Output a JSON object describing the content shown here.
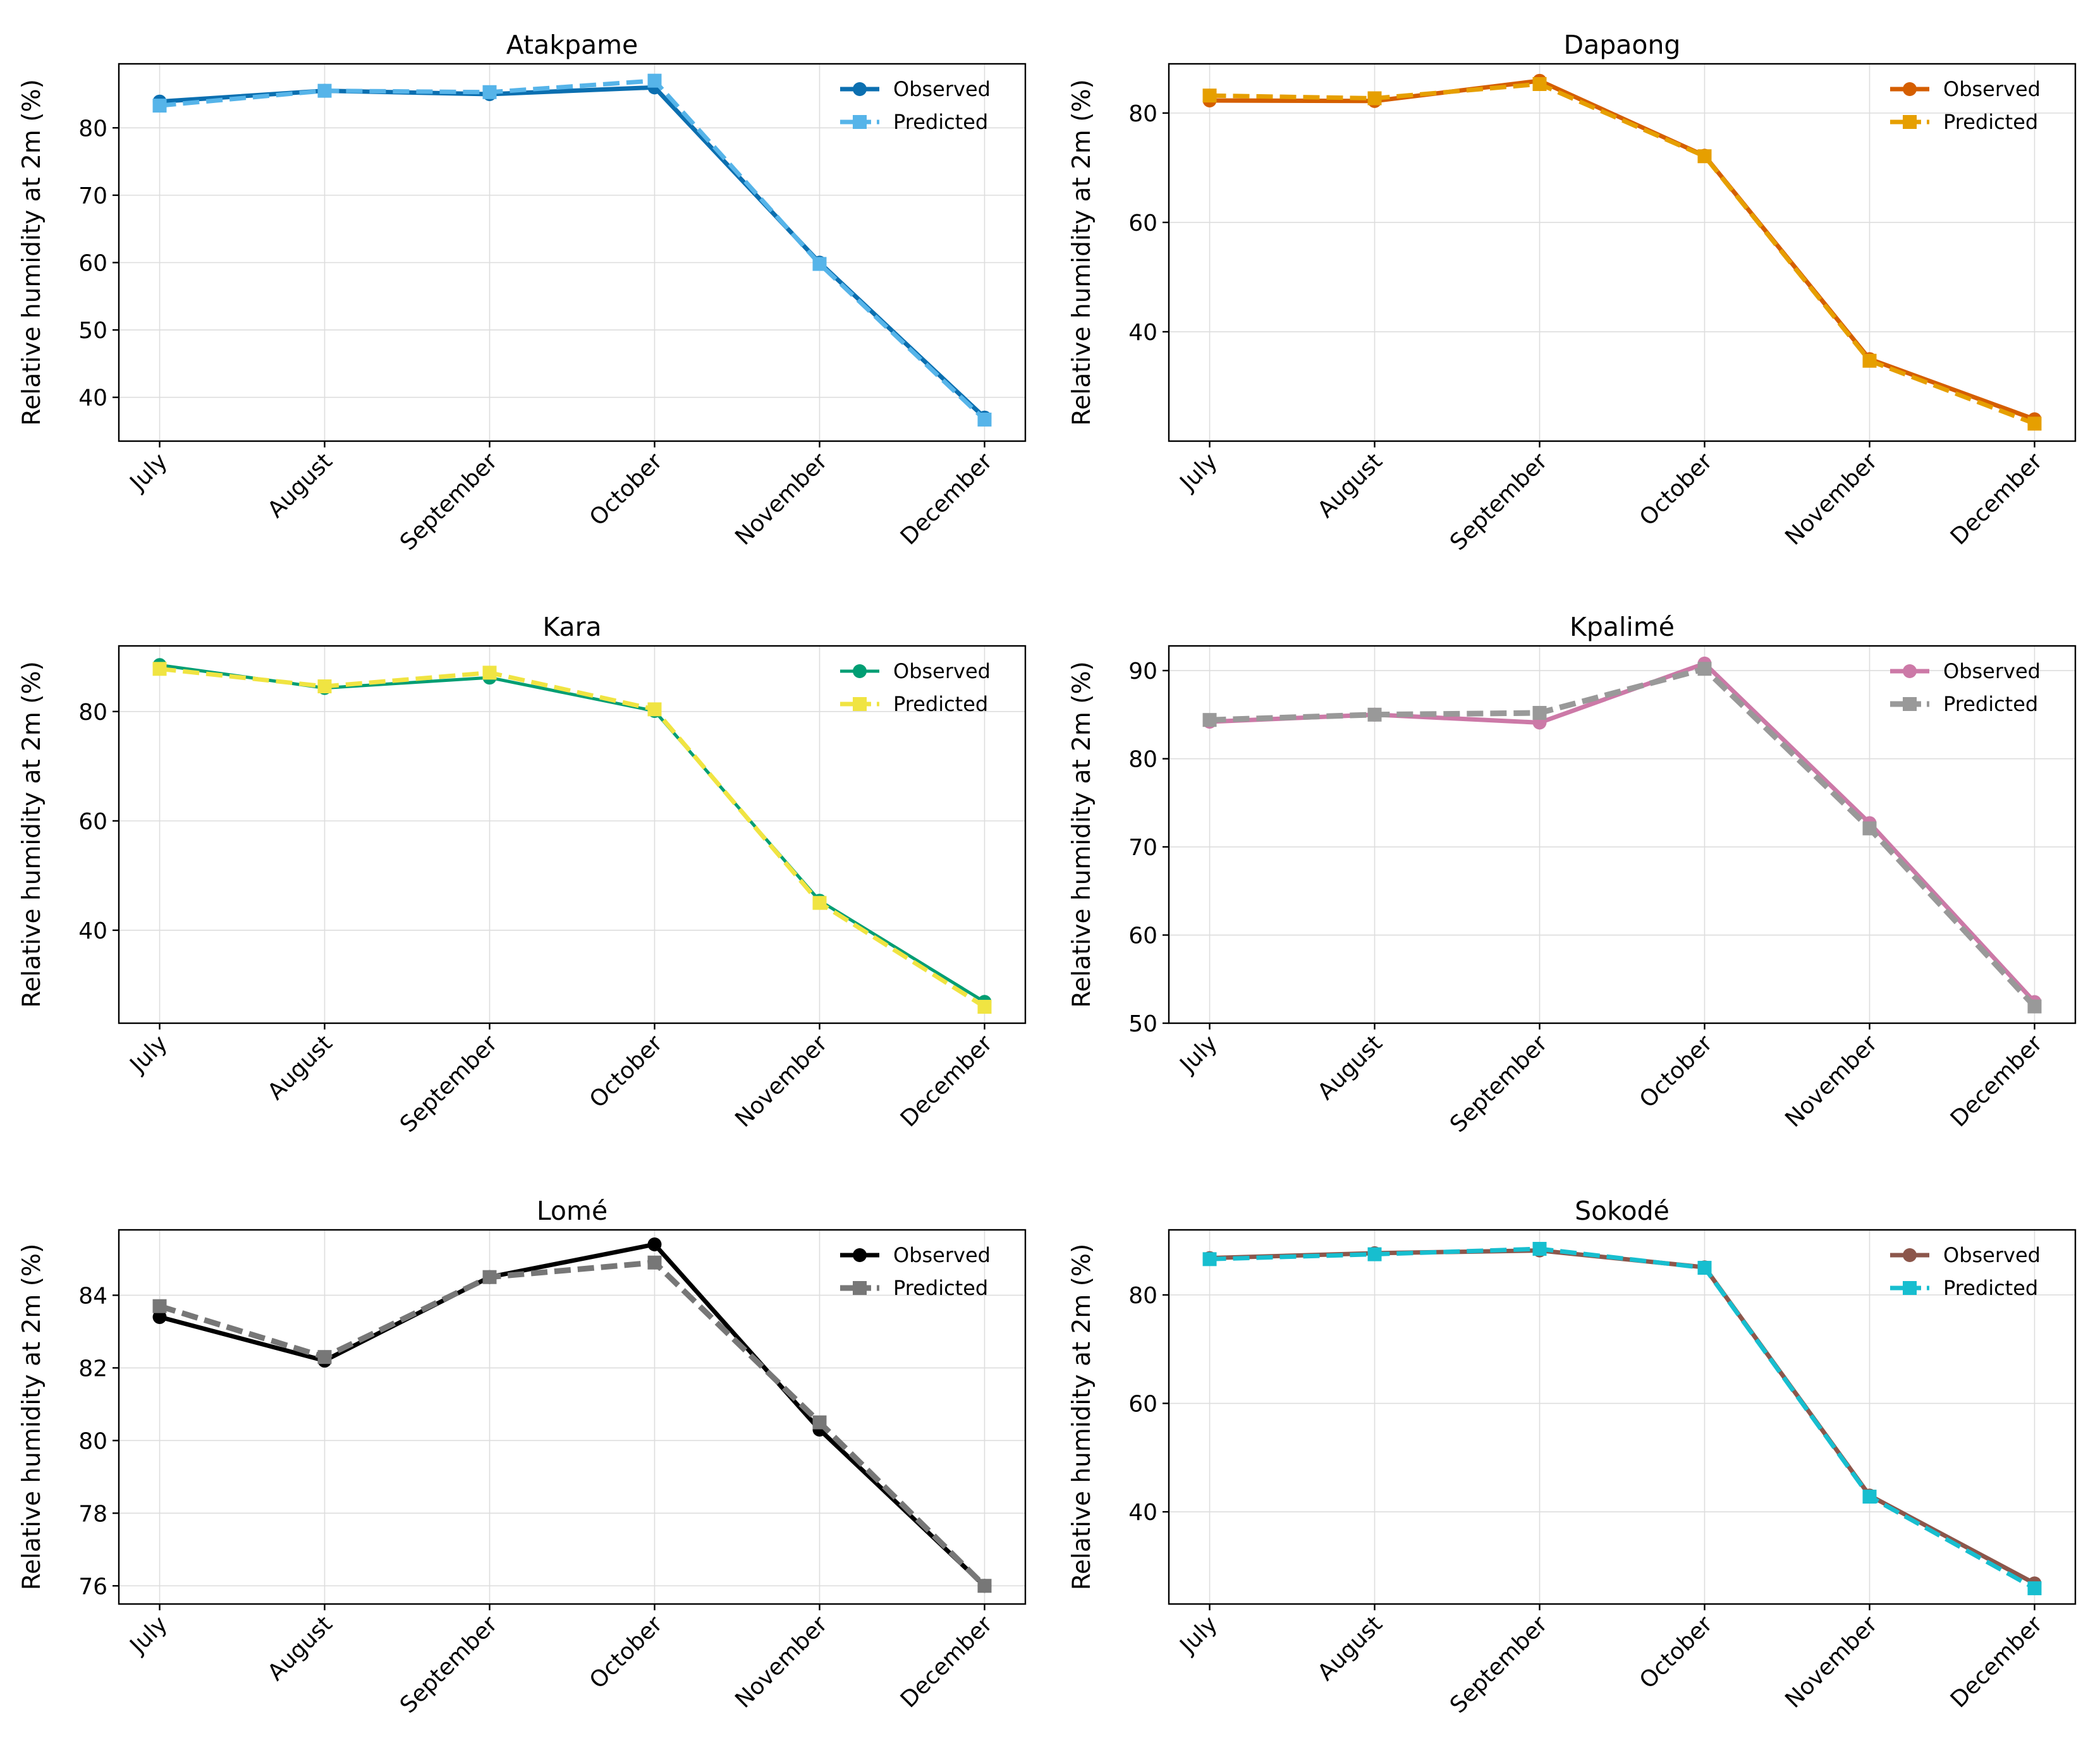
{
  "chart_data": [
    {
      "type": "line",
      "title": "Atakpame",
      "ylabel": "Relative humidity at 2m (%)",
      "categories": [
        "July",
        "August",
        "September",
        "October",
        "November",
        "December"
      ],
      "ylim": [
        33.5,
        89.5
      ],
      "yticks": [
        40,
        50,
        60,
        70,
        80
      ],
      "grid": true,
      "legend": "top-right",
      "series": [
        {
          "name": "Observed",
          "values": [
            83.9,
            85.5,
            85.0,
            86.0,
            60.0,
            37.0
          ],
          "color": "#0b6fb0",
          "style": "solid",
          "marker": "circle",
          "width": 7
        },
        {
          "name": "Predicted",
          "values": [
            83.3,
            85.5,
            85.3,
            87.0,
            59.8,
            36.7
          ],
          "color": "#56b4e9",
          "style": "dashed",
          "marker": "square",
          "width": 7
        }
      ]
    },
    {
      "type": "line",
      "title": "Dapaong",
      "ylabel": "Relative humidity at 2m (%)",
      "categories": [
        "July",
        "August",
        "September",
        "October",
        "November",
        "December"
      ],
      "ylim": [
        20,
        89
      ],
      "yticks": [
        40,
        60,
        80
      ],
      "grid": true,
      "legend": "top-right",
      "series": [
        {
          "name": "Observed",
          "values": [
            82.3,
            82.2,
            85.9,
            72.2,
            35.0,
            24.0
          ],
          "color": "#d55e00",
          "style": "solid",
          "marker": "circle",
          "width": 7
        },
        {
          "name": "Predicted",
          "values": [
            83.2,
            82.7,
            85.3,
            72.1,
            34.7,
            23.2
          ],
          "color": "#e69f00",
          "style": "dashed",
          "marker": "square",
          "width": 7
        }
      ]
    },
    {
      "type": "line",
      "title": "Kara",
      "ylabel": "Relative humidity at 2m (%)",
      "categories": [
        "July",
        "August",
        "September",
        "October",
        "November",
        "December"
      ],
      "ylim": [
        23,
        92
      ],
      "yticks": [
        40,
        60,
        80
      ],
      "grid": true,
      "legend": "top-right",
      "series": [
        {
          "name": "Observed",
          "values": [
            88.5,
            84.3,
            86.2,
            80.1,
            45.4,
            26.9
          ],
          "color": "#009e73",
          "style": "solid",
          "marker": "circle",
          "width": 5
        },
        {
          "name": "Predicted",
          "values": [
            87.8,
            84.6,
            87.1,
            80.4,
            45.0,
            26.0
          ],
          "color": "#f0e442",
          "style": "dashed",
          "marker": "square",
          "width": 7
        }
      ]
    },
    {
      "type": "line",
      "title": "Kpalimé",
      "ylabel": "Relative humidity at 2m (%)",
      "categories": [
        "July",
        "August",
        "September",
        "October",
        "November",
        "December"
      ],
      "ylim": [
        50,
        92.8
      ],
      "yticks": [
        50,
        60,
        70,
        80,
        90
      ],
      "grid": true,
      "legend": "top-right",
      "series": [
        {
          "name": "Observed",
          "values": [
            84.2,
            85.0,
            84.1,
            90.8,
            72.7,
            52.4
          ],
          "color": "#cc79a7",
          "style": "solid",
          "marker": "circle",
          "width": 7
        },
        {
          "name": "Predicted",
          "values": [
            84.4,
            85.0,
            85.2,
            90.2,
            72.1,
            51.9
          ],
          "color": "#999999",
          "style": "dashed",
          "marker": "square",
          "width": 9
        }
      ]
    },
    {
      "type": "line",
      "title": "Lomé",
      "ylabel": "Relative humidity at 2m (%)",
      "categories": [
        "July",
        "August",
        "September",
        "October",
        "November",
        "December"
      ],
      "ylim": [
        75.5,
        85.8
      ],
      "yticks": [
        76,
        78,
        80,
        82,
        84
      ],
      "grid": true,
      "legend": "top-right",
      "series": [
        {
          "name": "Observed",
          "values": [
            83.4,
            82.2,
            84.5,
            85.4,
            80.3,
            76.0
          ],
          "color": "#000000",
          "style": "solid",
          "marker": "circle",
          "width": 7
        },
        {
          "name": "Predicted",
          "values": [
            83.7,
            82.3,
            84.5,
            84.9,
            80.5,
            76.0
          ],
          "color": "#777777",
          "style": "dashed",
          "marker": "square",
          "width": 9
        }
      ]
    },
    {
      "type": "line",
      "title": "Sokodé",
      "ylabel": "Relative humidity at 2m (%)",
      "categories": [
        "July",
        "August",
        "September",
        "October",
        "November",
        "December"
      ],
      "ylim": [
        23,
        92
      ],
      "yticks": [
        40,
        60,
        80
      ],
      "grid": true,
      "legend": "top-right",
      "series": [
        {
          "name": "Observed",
          "values": [
            86.8,
            87.7,
            88.2,
            85.1,
            43.0,
            26.8
          ],
          "color": "#8c564b",
          "style": "solid",
          "marker": "circle",
          "width": 7
        },
        {
          "name": "Predicted",
          "values": [
            86.6,
            87.5,
            88.5,
            85.0,
            42.8,
            25.9
          ],
          "color": "#17becf",
          "style": "dashed",
          "marker": "square",
          "width": 7
        }
      ]
    }
  ]
}
